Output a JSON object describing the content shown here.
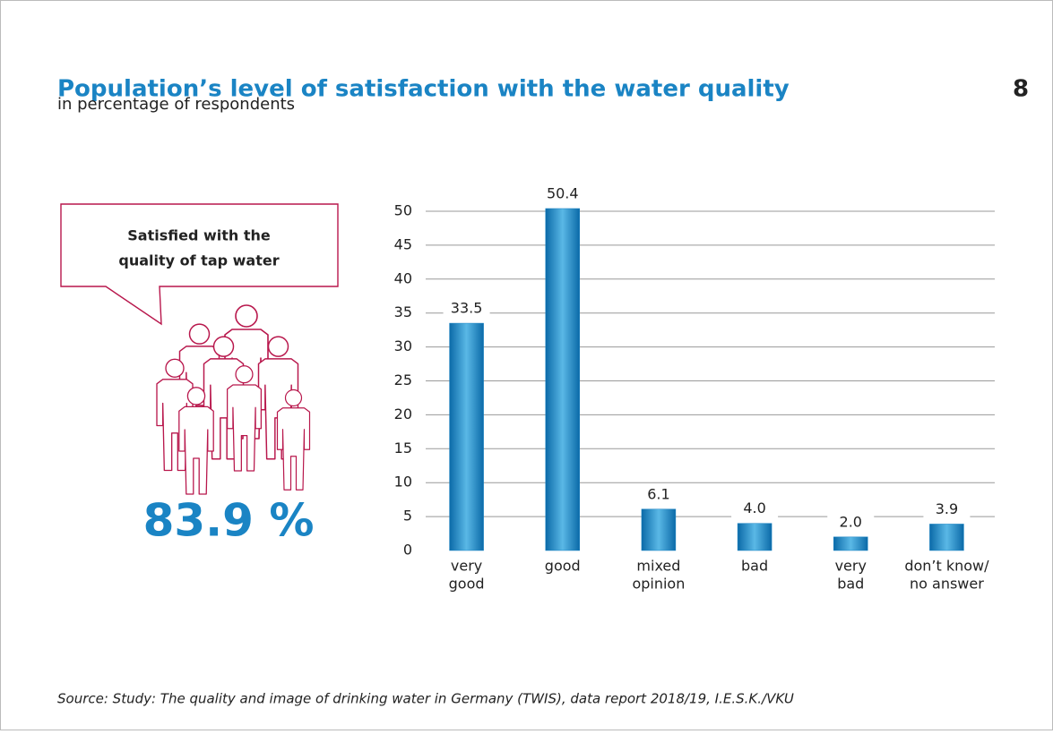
{
  "chart_data": {
    "type": "bar",
    "title": "Population’s level of satisfaction with the water quality",
    "subtitle": "in percentage of respondents",
    "page_number": "8",
    "callout": [
      "Satisfied with the",
      "quality of tap water"
    ],
    "highlight": "83.9 %",
    "source": "Source: Study: The quality and image of drinking water in Germany (TWIS), data report 2018/19, I.E.S.K./VKU",
    "categories": [
      [
        "very",
        "good"
      ],
      [
        "good"
      ],
      [
        "mixed",
        "opinion"
      ],
      [
        "bad"
      ],
      [
        "very",
        "bad"
      ],
      [
        "don’t know/",
        "no answer"
      ]
    ],
    "values": [
      33.5,
      50.4,
      6.1,
      4.0,
      2.0,
      3.9
    ],
    "value_labels": [
      "33.5",
      "50.4",
      "6.1",
      "4.0",
      "2.0",
      "3.9"
    ],
    "color": "#1a84c4",
    "ylim": [
      0,
      50
    ],
    "yticks": [
      0,
      5,
      10,
      15,
      20,
      25,
      30,
      35,
      40,
      45,
      50
    ],
    "grid": true
  }
}
